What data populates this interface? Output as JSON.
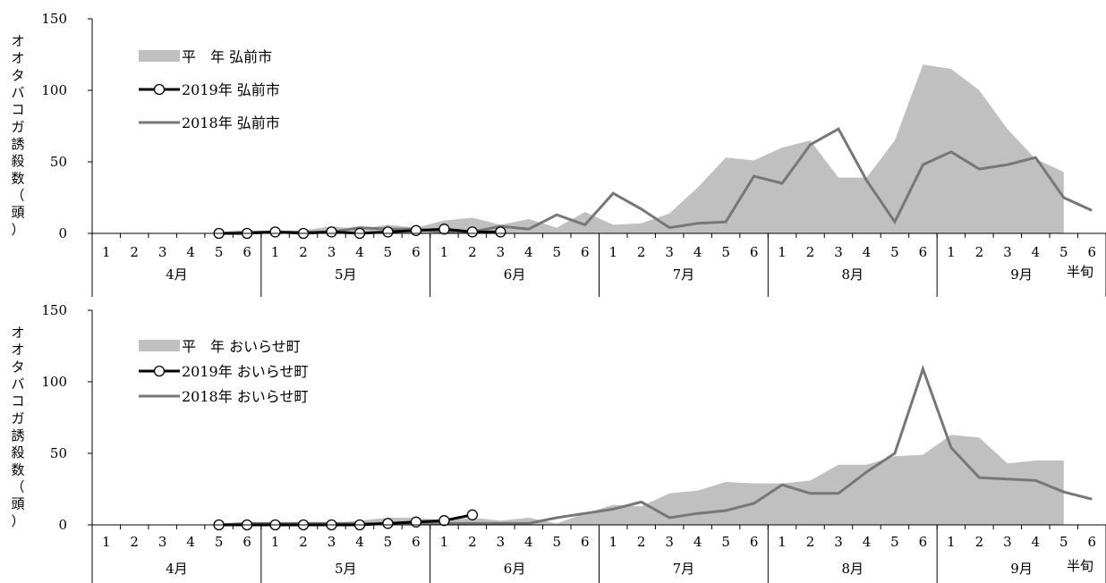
{
  "chart_data": [
    {
      "type": "line",
      "ylabel": "オオタバコガ誘殺数（頭）",
      "ylim": [
        0,
        150
      ],
      "yticks": [
        0,
        50,
        100,
        150
      ],
      "x_ticks": [
        "1",
        "2",
        "3",
        "4",
        "5",
        "6",
        "1",
        "2",
        "3",
        "4",
        "5",
        "6",
        "1",
        "2",
        "3",
        "4",
        "5",
        "6",
        "1",
        "2",
        "3",
        "4",
        "5",
        "6",
        "1",
        "2",
        "3",
        "4",
        "5",
        "6",
        "1",
        "2",
        "3",
        "4",
        "5",
        "6"
      ],
      "months": [
        "4月",
        "5月",
        "6月",
        "7月",
        "8月",
        "9月"
      ],
      "x_unit_label": "半旬",
      "colors": {
        "normal": "#c0c0c0",
        "y2019": "#000000",
        "y2018": "#777777"
      },
      "series": [
        {
          "name": "平　年 弘前市",
          "kind": "area",
          "start": 4,
          "values": [
            0,
            0,
            1,
            2,
            5,
            3,
            6,
            4,
            9,
            11,
            6,
            10,
            4,
            15,
            6,
            7,
            14,
            32,
            53,
            51,
            60,
            65,
            39,
            39,
            65,
            118,
            115,
            100,
            73,
            52,
            43
          ]
        },
        {
          "name": "2019年 弘前市",
          "kind": "line-marker",
          "start": 4,
          "values": [
            0,
            0,
            1,
            0,
            1,
            0,
            1,
            2,
            3,
            1,
            1
          ]
        },
        {
          "name": "2018年 弘前市",
          "kind": "line",
          "start": 4,
          "values": [
            0,
            1,
            1,
            1,
            1,
            4,
            3,
            3,
            1,
            1,
            5,
            3,
            13,
            6,
            28,
            17,
            4,
            7,
            8,
            40,
            35,
            62,
            73,
            37,
            8,
            48,
            57,
            45,
            48,
            53,
            25,
            16
          ]
        }
      ]
    },
    {
      "type": "line",
      "ylabel": "オオタバコガ誘殺数（頭）",
      "ylim": [
        0,
        150
      ],
      "yticks": [
        0,
        50,
        100,
        150
      ],
      "x_ticks": [
        "1",
        "2",
        "3",
        "4",
        "5",
        "6",
        "1",
        "2",
        "3",
        "4",
        "5",
        "6",
        "1",
        "2",
        "3",
        "4",
        "5",
        "6",
        "1",
        "2",
        "3",
        "4",
        "5",
        "6",
        "1",
        "2",
        "3",
        "4",
        "5",
        "6",
        "1",
        "2",
        "3",
        "4",
        "5",
        "6"
      ],
      "months": [
        "4月",
        "5月",
        "6月",
        "7月",
        "8月",
        "9月"
      ],
      "x_unit_label": "半旬",
      "colors": {
        "normal": "#c0c0c0",
        "y2019": "#000000",
        "y2018": "#777777"
      },
      "series": [
        {
          "name": "平　年 おいらせ町",
          "kind": "area",
          "start": 4,
          "values": [
            0,
            0,
            1,
            2,
            1,
            3,
            5,
            5,
            3,
            5,
            3,
            5,
            1,
            8,
            14,
            13,
            22,
            24,
            30,
            29,
            29,
            31,
            42,
            42,
            48,
            49,
            63,
            61,
            43,
            45,
            45
          ]
        },
        {
          "name": "2019年 おいらせ町",
          "kind": "line-marker",
          "start": 4,
          "values": [
            0,
            0,
            0,
            0,
            0,
            0,
            1,
            2,
            3,
            7
          ]
        },
        {
          "name": "2018年 おいらせ町",
          "kind": "line",
          "start": 4,
          "values": [
            0,
            1,
            1,
            1,
            1,
            1,
            1,
            1,
            1,
            1,
            1,
            1,
            5,
            8,
            11,
            16,
            5,
            8,
            10,
            15,
            28,
            22,
            22,
            37,
            50,
            109,
            54,
            33,
            32,
            31,
            23,
            18
          ]
        }
      ]
    }
  ]
}
